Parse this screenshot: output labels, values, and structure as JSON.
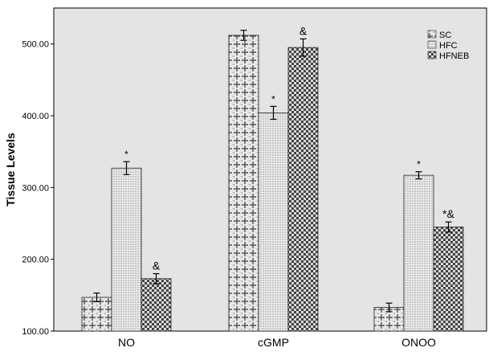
{
  "chart_data": {
    "type": "bar",
    "title": "",
    "xlabel": "",
    "ylabel": "Tissue Levels",
    "ylim": [
      100,
      550
    ],
    "yticks": [
      "100.00",
      "200.00",
      "300.00",
      "400.00",
      "500.00"
    ],
    "grid": false,
    "legend_position": "top-right",
    "categories": [
      "NO",
      "cGMP",
      "ONOO"
    ],
    "series": [
      {
        "name": "SC",
        "pattern": "cross",
        "values": [
          147,
          512,
          133
        ],
        "errors": [
          6,
          7,
          6
        ],
        "annotations": [
          "",
          "",
          ""
        ]
      },
      {
        "name": "HFC",
        "pattern": "dots",
        "values": [
          327,
          404,
          317
        ],
        "errors": [
          9,
          9,
          5
        ],
        "annotations": [
          "*",
          "*",
          "*"
        ]
      },
      {
        "name": "HFNEB",
        "pattern": "checker",
        "values": [
          173,
          495,
          245
        ],
        "errors": [
          7,
          12,
          7
        ],
        "annotations": [
          "&",
          "&",
          "*&"
        ]
      }
    ],
    "colors": {
      "background": "#e5e3e5",
      "frame": "#000000",
      "bar_stroke": "#222222"
    }
  }
}
